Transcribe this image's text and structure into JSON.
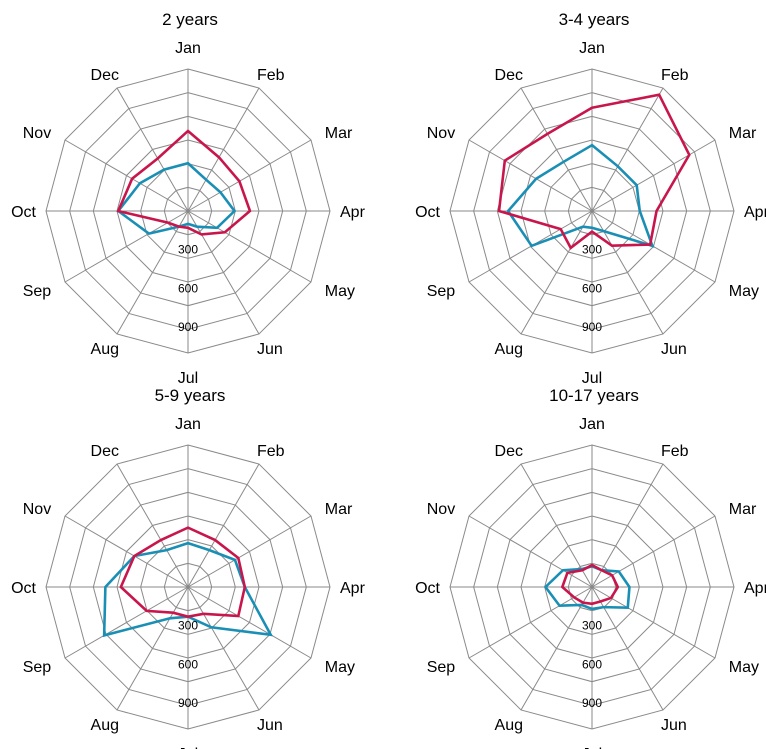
{
  "colors": {
    "grid": "#8a8a8a",
    "series_a": "#1a8fb5",
    "series_b": "#c8164c"
  },
  "chart_data": [
    {
      "type": "radar",
      "title": "2 years",
      "categories": [
        "Jan",
        "Feb",
        "Mar",
        "Apr",
        "May",
        "Jun",
        "Jul",
        "Aug",
        "Sep",
        "Oct",
        "Nov",
        "Dec"
      ],
      "radial_ticks": [
        "300",
        "600",
        "900"
      ],
      "rmax": 1100,
      "grid": true,
      "series": [
        {
          "color": "#1a8fb5",
          "values": [
            370,
            280,
            290,
            360,
            260,
            140,
            100,
            140,
            350,
            540,
            430,
            370
          ]
        },
        {
          "color": "#c8164c",
          "values": [
            620,
            480,
            460,
            480,
            330,
            210,
            130,
            140,
            180,
            540,
            500,
            470
          ]
        }
      ]
    },
    {
      "type": "radar",
      "title": "3-4 years",
      "categories": [
        "Jan",
        "Feb",
        "Mar",
        "Apr",
        "May",
        "Jun",
        "Jul",
        "Aug",
        "Sep",
        "Oct",
        "Nov",
        "Dec"
      ],
      "radial_ticks": [
        "300",
        "600",
        "900"
      ],
      "rmax": 1100,
      "grid": true,
      "series": [
        {
          "color": "#1a8fb5",
          "values": [
            510,
            400,
            400,
            370,
            540,
            180,
            130,
            140,
            540,
            650,
            500,
            440
          ]
        },
        {
          "color": "#c8164c",
          "values": [
            800,
            1040,
            870,
            500,
            520,
            310,
            160,
            330,
            280,
            720,
            780,
            690
          ]
        }
      ]
    },
    {
      "type": "radar",
      "title": "5-9 years",
      "categories": [
        "Jan",
        "Feb",
        "Mar",
        "Apr",
        "May",
        "Jun",
        "Jul",
        "Aug",
        "Sep",
        "Oct",
        "Nov",
        "Dec"
      ],
      "radial_ticks": [
        "300",
        "600",
        "900"
      ],
      "rmax": 1100,
      "grid": true,
      "series": [
        {
          "color": "#1a8fb5",
          "values": [
            340,
            330,
            420,
            440,
            740,
            360,
            230,
            280,
            750,
            640,
            480,
            330
          ]
        },
        {
          "color": "#c8164c",
          "values": [
            460,
            420,
            450,
            440,
            450,
            240,
            230,
            230,
            370,
            520,
            480,
            420
          ]
        }
      ]
    },
    {
      "type": "radar",
      "title": "10-17 years",
      "categories": [
        "Jan",
        "Feb",
        "Mar",
        "Apr",
        "May",
        "Jun",
        "Jul",
        "Aug",
        "Sep",
        "Oct",
        "Nov",
        "Dec"
      ],
      "radial_ticks": [
        "300",
        "600",
        "900"
      ],
      "rmax": 1100,
      "grid": true,
      "series": [
        {
          "color": "#1a8fb5",
          "values": [
            160,
            150,
            240,
            290,
            320,
            180,
            170,
            160,
            290,
            360,
            260,
            160
          ]
        },
        {
          "color": "#c8164c",
          "values": [
            170,
            150,
            180,
            200,
            170,
            130,
            130,
            140,
            160,
            230,
            220,
            150
          ]
        }
      ]
    }
  ]
}
